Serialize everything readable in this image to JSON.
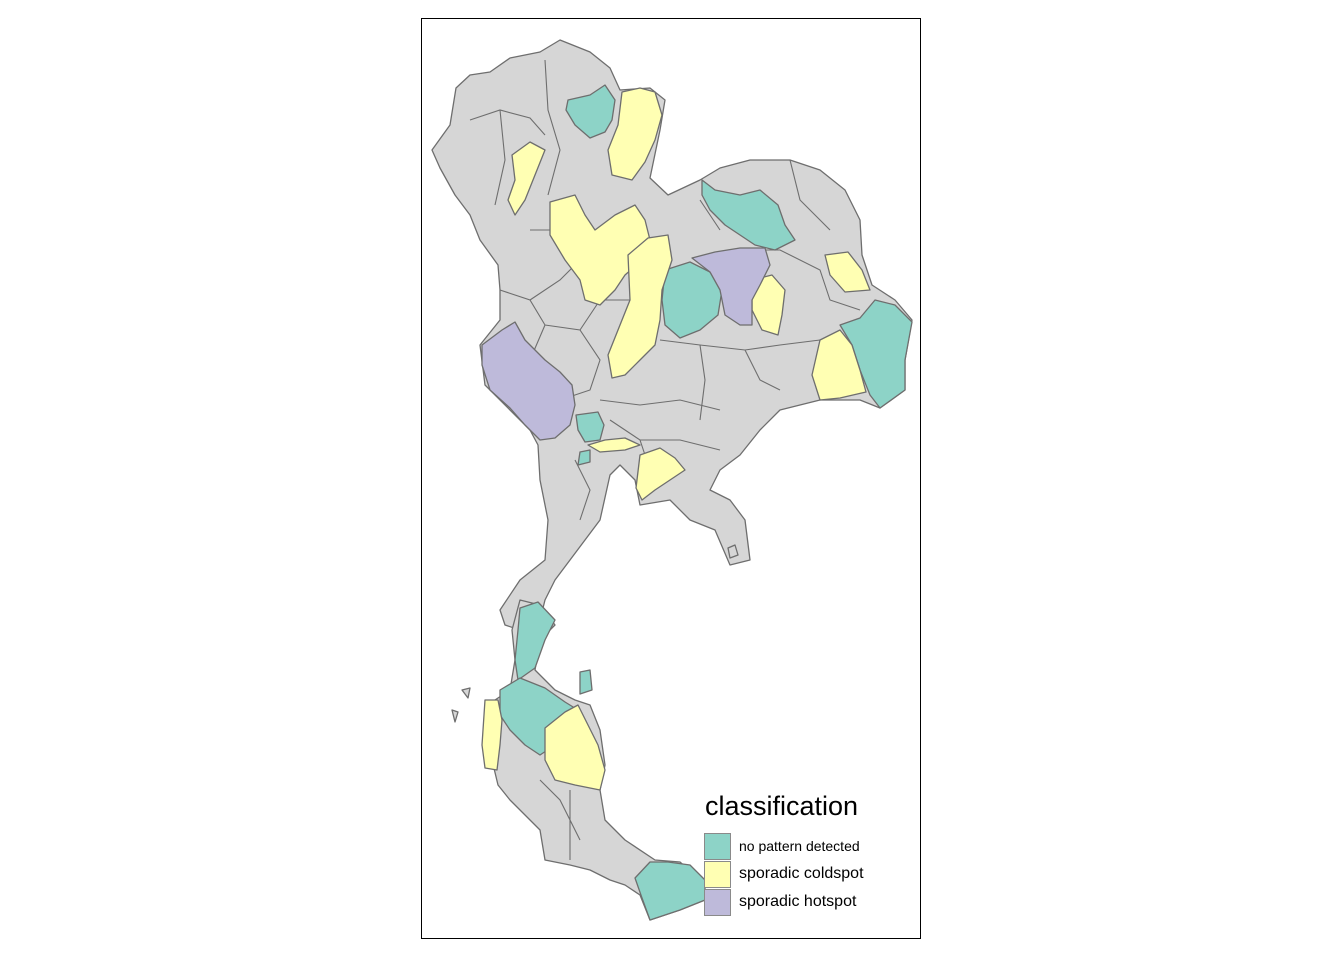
{
  "legend": {
    "title": "classification",
    "items": [
      {
        "label": "no pattern detected",
        "color": "#8dd3c7"
      },
      {
        "label": "sporadic coldspot",
        "color": "#ffffb3"
      },
      {
        "label": "sporadic hotspot",
        "color": "#bebada"
      }
    ]
  },
  "colors": {
    "no_pattern_detected": "#8dd3c7",
    "sporadic_coldspot": "#ffffb3",
    "sporadic_hotspot": "#bebada",
    "unclassified": "#d6d6d6",
    "border": "#6e6e6e"
  }
}
